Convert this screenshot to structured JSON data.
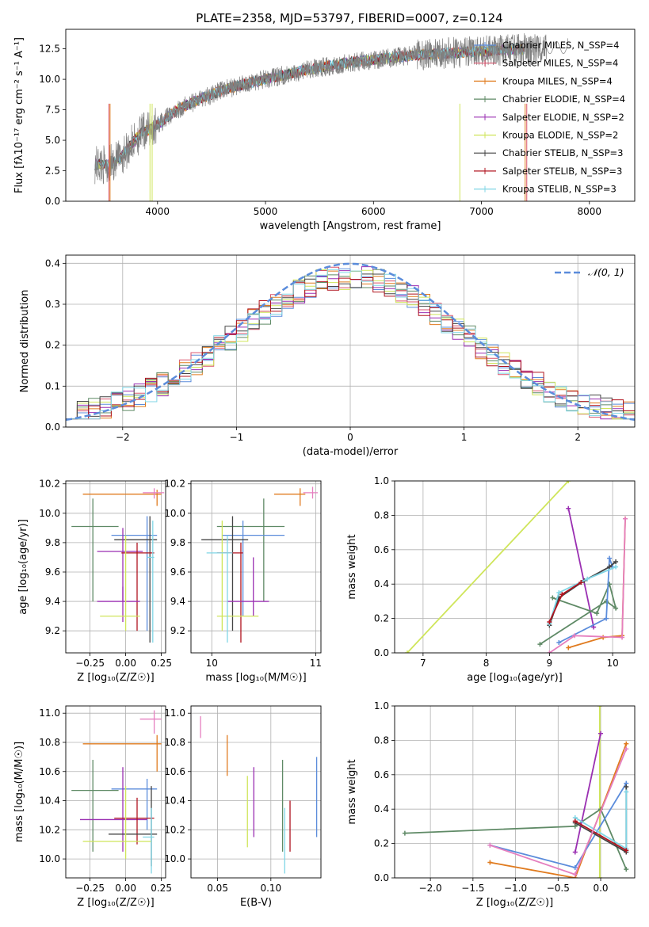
{
  "figure": {
    "title": "PLATE=2358, MJD=53797, FIBERID=0007, z=0.124"
  },
  "colors": {
    "chabrier_miles": "#5b8cdb",
    "salpeter_miles": "#d9536c",
    "kroupa_miles": "#e07b1f",
    "chabrier_elodie": "#5f8a66",
    "salpeter_elodie": "#9a2fb2",
    "kroupa_elodie": "#cfe55a",
    "chabrier_stelib": "#444444",
    "salpeter_stelib": "#b0141f",
    "kroupa_stelib": "#7fd6e6",
    "data": "#808080",
    "pink": "#e57fbf",
    "grid": "#b0b0b0"
  },
  "chart_data": [
    {
      "id": "spectrum",
      "type": "line",
      "title": "PLATE=2358, MJD=53797, FIBERID=0007, z=0.124",
      "xlabel": "wavelength [Angstrom, rest frame]",
      "ylabel": "Flux [fλ10⁻¹⁷ erg cm⁻² s⁻¹ A⁻¹]",
      "xlim": [
        3150,
        8420
      ],
      "ylim": [
        0,
        14.1
      ],
      "xticks": [
        "4000",
        "5000",
        "6000",
        "7000",
        "8000"
      ],
      "yticks": [
        "0.0",
        "2.5",
        "5.0",
        "7.5",
        "10.0",
        "12.5"
      ],
      "grid": false,
      "legend_position": "right",
      "legend": [
        "Chabrier MILES, N_SSP=4",
        "Salpeter MILES, N_SSP=4",
        "Kroupa MILES, N_SSP=4",
        "Chabrier ELODIE, N_SSP=4",
        "Salpeter ELODIE, N_SSP=2",
        "Kroupa ELODIE, N_SSP=2",
        "Chabrier STELIB, N_SSP=3",
        "Salpeter STELIB, N_SSP=3",
        "Kroupa STELIB, N_SSP=3"
      ],
      "continuum": {
        "x": [
          3420,
          3550,
          3650,
          3750,
          3850,
          3950,
          4050,
          4200,
          4400,
          4600,
          4800,
          5000,
          5200,
          5400,
          5600,
          5800,
          6000,
          6200,
          6400,
          6600,
          6800,
          7000,
          7200,
          7400
        ],
        "y": [
          3.0,
          3.0,
          3.5,
          4.6,
          5.6,
          6.0,
          6.6,
          7.6,
          8.4,
          9.1,
          9.6,
          10.0,
          10.4,
          10.8,
          11.1,
          11.4,
          11.6,
          11.8,
          12.0,
          12.1,
          12.2,
          12.3,
          12.4,
          12.5
        ]
      }
    },
    {
      "id": "residuals",
      "type": "line",
      "xlabel": "(data-model)/error",
      "ylabel": "Normed distribution",
      "xlim": [
        -2.5,
        2.5
      ],
      "ylim": [
        0,
        0.42
      ],
      "xticks": [
        -2,
        -1,
        0,
        1,
        2
      ],
      "xticklabels": [
        "−2",
        "−1",
        "0",
        "1",
        "2"
      ],
      "yticks": [
        "0.0",
        "0.1",
        "0.2",
        "0.3",
        "0.4"
      ],
      "grid": true,
      "legend_position": "top-right",
      "legend": [
        "𝒩(0, 1)"
      ],
      "series": [
        {
          "name": "N(0,1)",
          "x": [
            -2.5,
            -2.0,
            -1.5,
            -1.0,
            -0.5,
            0.0,
            0.5,
            1.0,
            1.5,
            2.0,
            2.5
          ],
          "y": [
            0.018,
            0.054,
            0.13,
            0.242,
            0.352,
            0.399,
            0.352,
            0.242,
            0.13,
            0.054,
            0.018
          ]
        }
      ],
      "hist_centers": [
        -2.0,
        -1.5,
        -1.0,
        -0.5,
        0.0,
        0.5,
        1.0,
        1.5,
        2.0,
        2.5
      ],
      "hist_values": [
        0.07,
        0.1,
        0.22,
        0.3,
        0.35,
        0.33,
        0.26,
        0.18,
        0.11,
        0.05
      ]
    },
    {
      "id": "age_vs_Z",
      "type": "scatter",
      "xlabel": "Z [log₁₀(Z/Z☉)]",
      "ylabel": "age  [log₁₀(age/yr)]",
      "xlim": [
        -0.42,
        0.28
      ],
      "ylim": [
        9.05,
        10.22
      ],
      "xticks": [
        -0.25,
        0.0,
        0.25
      ],
      "xticklabels": [
        "−0.25",
        "0.00",
        "0.25"
      ],
      "yticks": [
        "9.2",
        "9.4",
        "9.6",
        "9.8",
        "10.0",
        "10.2"
      ],
      "grid": true
    },
    {
      "id": "age_vs_mass",
      "type": "scatter",
      "xlabel": "mass [log₁₀(M/M☉)]",
      "ylabel": "",
      "xlim": [
        9.8,
        11.05
      ],
      "ylim": [
        9.05,
        10.22
      ],
      "xticks": [
        "10",
        "11"
      ],
      "yticks": [
        "9.2",
        "9.4",
        "9.6",
        "9.8",
        "10.0",
        "10.2"
      ],
      "grid": true
    },
    {
      "id": "weight_vs_age",
      "type": "line",
      "xlabel": "age  [log₁₀(age/yr)]",
      "ylabel": "mass weight",
      "xlim": [
        6.55,
        10.35
      ],
      "ylim": [
        0,
        1.0
      ],
      "xticks": [
        "7",
        "8",
        "9",
        "10"
      ],
      "yticks": [
        "0.0",
        "0.2",
        "0.4",
        "0.6",
        "0.8",
        "1.0"
      ],
      "grid": true
    },
    {
      "id": "mass_vs_Z",
      "type": "scatter",
      "xlabel": "Z [log₁₀(Z/Z☉)]",
      "ylabel": "mass [log₁₀(M/M☉)]",
      "xlim": [
        -0.42,
        0.28
      ],
      "ylim": [
        9.87,
        11.05
      ],
      "xticks": [
        -0.25,
        0.0,
        0.25
      ],
      "xticklabels": [
        "−0.25",
        "0.00",
        "0.25"
      ],
      "yticks": [
        "10.0",
        "10.2",
        "10.4",
        "10.6",
        "10.8",
        "11.0"
      ],
      "grid": true
    },
    {
      "id": "mass_vs_ebv",
      "type": "scatter",
      "xlabel": "E(B-V)",
      "ylabel": "",
      "xlim": [
        0.025,
        0.147
      ],
      "ylim": [
        9.87,
        11.05
      ],
      "xticks": [
        "0.05",
        "0.10"
      ],
      "yticks": [
        "10.0",
        "10.2",
        "10.4",
        "10.6",
        "10.8",
        "11.0"
      ],
      "grid": true
    },
    {
      "id": "weight_vs_Z",
      "type": "line",
      "xlabel": "Z [log₁₀(Z/Z☉)]",
      "ylabel": "mass weight",
      "xlim": [
        -2.42,
        0.4
      ],
      "ylim": [
        0,
        1.0
      ],
      "xticks": [
        -2.0,
        -1.5,
        -1.0,
        -0.5,
        0.0
      ],
      "xticklabels": [
        "−2.0",
        "−1.5",
        "−1.0",
        "−0.5",
        "0.0"
      ],
      "yticks": [
        "0.0",
        "0.2",
        "0.4",
        "0.6",
        "0.8",
        "1.0"
      ],
      "grid": true
    }
  ]
}
